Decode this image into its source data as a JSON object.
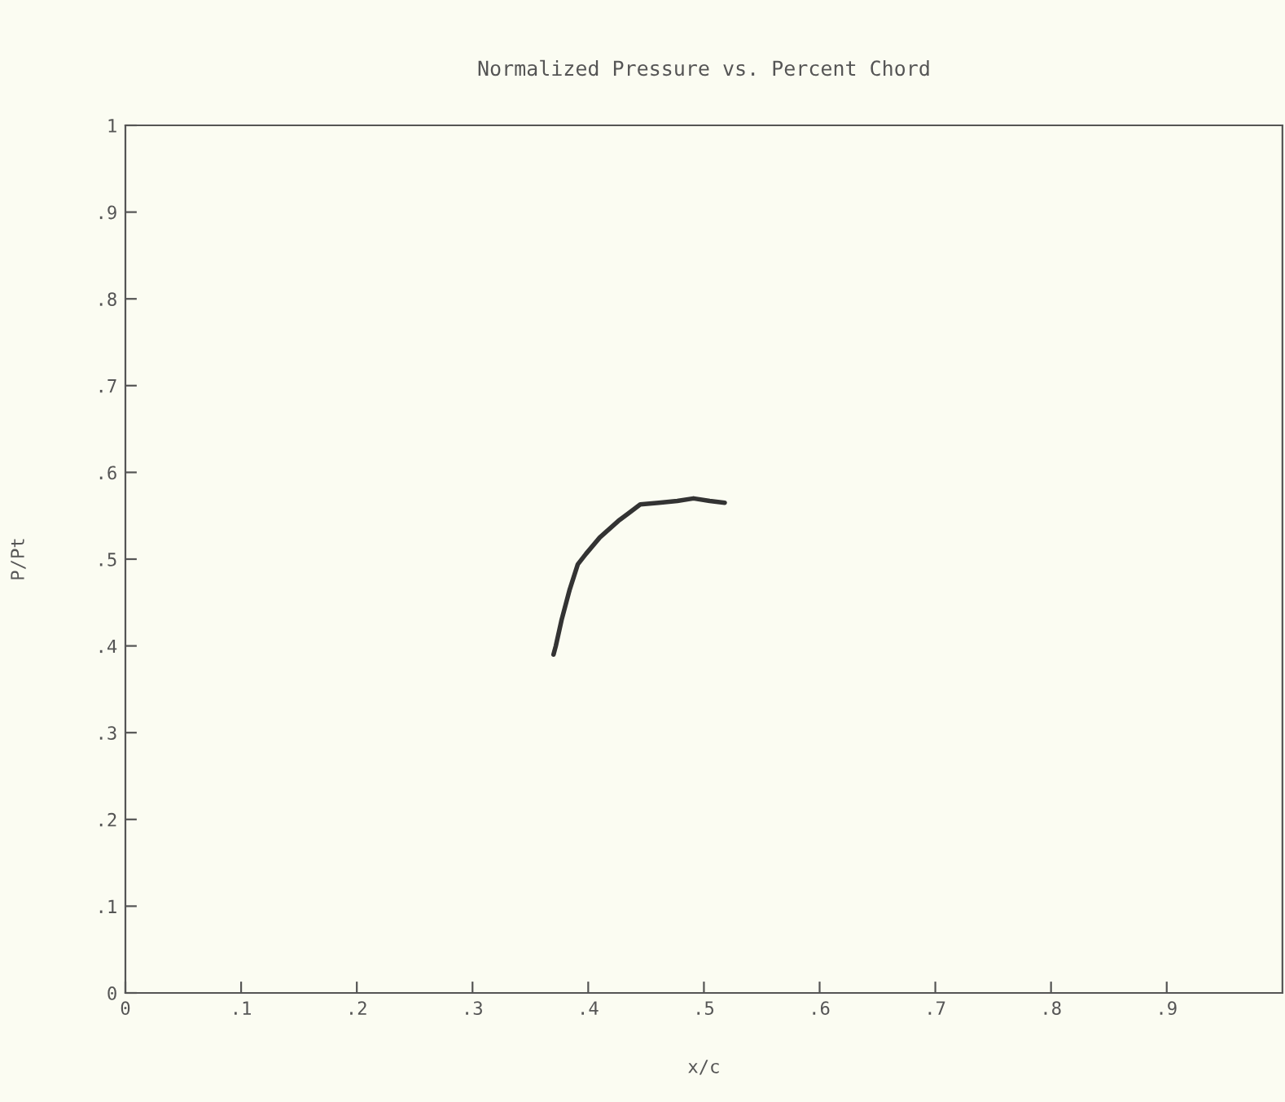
{
  "chart_data": {
    "type": "line",
    "title": "Normalized Pressure vs. Percent Chord",
    "xlabel": "x/c",
    "ylabel": "P/Pt",
    "x": [
      0.37,
      0.372,
      0.377,
      0.384,
      0.391,
      0.398,
      0.41,
      0.426,
      0.435,
      0.445,
      0.461,
      0.477,
      0.491,
      0.505,
      0.518
    ],
    "series": [
      {
        "color": "#333333",
        "values": [
          0.39,
          0.4,
          0.43,
          0.465,
          0.494,
          0.506,
          0.525,
          0.544,
          0.553,
          0.563,
          0.565,
          0.567,
          0.57,
          0.567,
          0.565
        ]
      }
    ],
    "xlim": [
      0,
      1
    ],
    "ylim": [
      0,
      1
    ],
    "xticks": [
      {
        "value": 0,
        "label": "0"
      },
      {
        "value": 0.1,
        "label": ".1"
      },
      {
        "value": 0.2,
        "label": ".2"
      },
      {
        "value": 0.3,
        "label": ".3"
      },
      {
        "value": 0.4,
        "label": ".4"
      },
      {
        "value": 0.5,
        "label": ".5"
      },
      {
        "value": 0.6,
        "label": ".6"
      },
      {
        "value": 0.7,
        "label": ".7"
      },
      {
        "value": 0.8,
        "label": ".8"
      },
      {
        "value": 0.9,
        "label": ".9"
      }
    ],
    "yticks": [
      {
        "value": 0,
        "label": "0"
      },
      {
        "value": 0.1,
        "label": ".1"
      },
      {
        "value": 0.2,
        "label": ".2"
      },
      {
        "value": 0.3,
        "label": ".3"
      },
      {
        "value": 0.4,
        "label": ".4"
      },
      {
        "value": 0.5,
        "label": ".5"
      },
      {
        "value": 0.6,
        "label": ".6"
      },
      {
        "value": 0.7,
        "label": ".7"
      },
      {
        "value": 0.8,
        "label": ".8"
      },
      {
        "value": 0.9,
        "label": ".9"
      },
      {
        "value": 1,
        "label": "1"
      }
    ],
    "grid": false,
    "legend": false
  }
}
